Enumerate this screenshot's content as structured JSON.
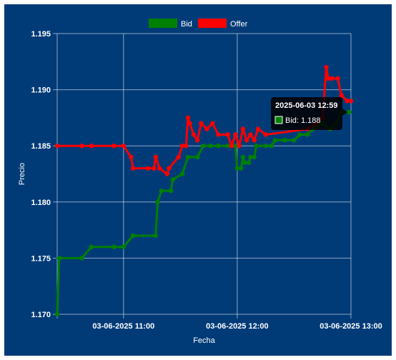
{
  "chart_data": {
    "type": "line",
    "title": "",
    "xlabel": "Fecha",
    "ylabel": "Precio",
    "ylim": [
      1.17,
      1.195
    ],
    "yticks": [
      "1.170",
      "1.175",
      "1.180",
      "1.185",
      "1.190",
      "1.195"
    ],
    "xlim": [
      "2025-06-03 10:25",
      "2025-06-03 13:00"
    ],
    "xticks": [
      {
        "t": "2025-06-03 11:00",
        "label": "03-06-2025 11:00"
      },
      {
        "t": "2025-06-03 12:00",
        "label": "03-06-2025 12:00"
      },
      {
        "t": "2025-06-03 13:00",
        "label": "03-06-2025 13:00"
      }
    ],
    "grid": true,
    "legend_position": "top",
    "series": [
      {
        "name": "Bid",
        "color": "#008000",
        "points": [
          [
            "2025-06-03 10:25",
            1.17
          ],
          [
            "2025-06-03 10:26",
            1.175
          ],
          [
            "2025-06-03 10:38",
            1.175
          ],
          [
            "2025-06-03 10:43",
            1.176
          ],
          [
            "2025-06-03 10:55",
            1.176
          ],
          [
            "2025-06-03 11:00",
            1.176
          ],
          [
            "2025-06-03 11:05",
            1.177
          ],
          [
            "2025-06-03 11:17",
            1.177
          ],
          [
            "2025-06-03 11:18",
            1.18
          ],
          [
            "2025-06-03 11:20",
            1.181
          ],
          [
            "2025-06-03 11:25",
            1.181
          ],
          [
            "2025-06-03 11:26",
            1.182
          ],
          [
            "2025-06-03 11:31",
            1.1825
          ],
          [
            "2025-06-03 11:34",
            1.184
          ],
          [
            "2025-06-03 11:39",
            1.184
          ],
          [
            "2025-06-03 11:42",
            1.185
          ],
          [
            "2025-06-03 11:46",
            1.185
          ],
          [
            "2025-06-03 11:50",
            1.185
          ],
          [
            "2025-06-03 11:55",
            1.185
          ],
          [
            "2025-06-03 11:59",
            1.185
          ],
          [
            "2025-06-03 12:00",
            1.183
          ],
          [
            "2025-06-03 12:02",
            1.183
          ],
          [
            "2025-06-03 12:03",
            1.184
          ],
          [
            "2025-06-03 12:04",
            1.1835
          ],
          [
            "2025-06-03 12:06",
            1.1835
          ],
          [
            "2025-06-03 12:07",
            1.184
          ],
          [
            "2025-06-03 12:09",
            1.184
          ],
          [
            "2025-06-03 12:10",
            1.185
          ],
          [
            "2025-06-03 12:15",
            1.185
          ],
          [
            "2025-06-03 12:18",
            1.185
          ],
          [
            "2025-06-03 12:20",
            1.1855
          ],
          [
            "2025-06-03 12:25",
            1.1855
          ],
          [
            "2025-06-03 12:30",
            1.1855
          ],
          [
            "2025-06-03 12:33",
            1.186
          ],
          [
            "2025-06-03 12:37",
            1.186
          ],
          [
            "2025-06-03 12:40",
            1.1865
          ],
          [
            "2025-06-03 12:45",
            1.187
          ],
          [
            "2025-06-03 12:49",
            1.1865
          ],
          [
            "2025-06-03 12:52",
            1.187
          ],
          [
            "2025-06-03 12:55",
            1.188
          ],
          [
            "2025-06-03 12:59",
            1.188
          ]
        ]
      },
      {
        "name": "Offer",
        "color": "#ff0000",
        "points": [
          [
            "2025-06-03 10:25",
            1.185
          ],
          [
            "2025-06-03 10:38",
            1.185
          ],
          [
            "2025-06-03 10:43",
            1.185
          ],
          [
            "2025-06-03 10:55",
            1.185
          ],
          [
            "2025-06-03 11:00",
            1.185
          ],
          [
            "2025-06-03 11:04",
            1.184
          ],
          [
            "2025-06-03 11:05",
            1.183
          ],
          [
            "2025-06-03 11:13",
            1.183
          ],
          [
            "2025-06-03 11:16",
            1.183
          ],
          [
            "2025-06-03 11:17",
            1.184
          ],
          [
            "2025-06-03 11:19",
            1.183
          ],
          [
            "2025-06-03 11:23",
            1.1825
          ],
          [
            "2025-06-03 11:24",
            1.183
          ],
          [
            "2025-06-03 11:29",
            1.184
          ],
          [
            "2025-06-03 11:31",
            1.185
          ],
          [
            "2025-06-03 11:33",
            1.185
          ],
          [
            "2025-06-03 11:34",
            1.1875
          ],
          [
            "2025-06-03 11:35",
            1.187
          ],
          [
            "2025-06-03 11:37",
            1.186
          ],
          [
            "2025-06-03 11:39",
            1.1855
          ],
          [
            "2025-06-03 11:41",
            1.187
          ],
          [
            "2025-06-03 11:44",
            1.1865
          ],
          [
            "2025-06-03 11:47",
            1.187
          ],
          [
            "2025-06-03 11:50",
            1.186
          ],
          [
            "2025-06-03 11:55",
            1.186
          ],
          [
            "2025-06-03 11:57",
            1.185
          ],
          [
            "2025-06-03 11:59",
            1.186
          ],
          [
            "2025-06-03 12:01",
            1.185
          ],
          [
            "2025-06-03 12:03",
            1.1865
          ],
          [
            "2025-06-03 12:05",
            1.1855
          ],
          [
            "2025-06-03 12:07",
            1.186
          ],
          [
            "2025-06-03 12:09",
            1.1855
          ],
          [
            "2025-06-03 12:11",
            1.1865
          ],
          [
            "2025-06-03 12:15",
            1.186
          ],
          [
            "2025-06-03 12:37",
            1.1865
          ],
          [
            "2025-06-03 12:42",
            1.187
          ],
          [
            "2025-06-03 12:45",
            1.1875
          ],
          [
            "2025-06-03 12:47",
            1.192
          ],
          [
            "2025-06-03 12:48",
            1.191
          ],
          [
            "2025-06-03 12:50",
            1.191
          ],
          [
            "2025-06-03 12:53",
            1.191
          ],
          [
            "2025-06-03 12:55",
            1.1895
          ],
          [
            "2025-06-03 12:58",
            1.189
          ],
          [
            "2025-06-03 13:00",
            1.189
          ]
        ]
      }
    ],
    "tooltip": {
      "title": "2025-06-03 12:59",
      "label": "Bid: 1.188",
      "t": "2025-06-03 12:59",
      "value": 1.188
    }
  }
}
